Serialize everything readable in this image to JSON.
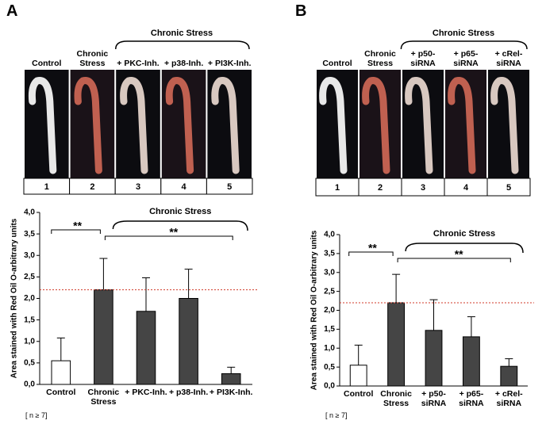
{
  "chart_data": [
    {
      "type": "bar",
      "panel": "A",
      "photo_header": "Chronic Stress",
      "photo_labels": [
        "Control",
        "Chronic Stress",
        "+ PKC-Inh.",
        "+ p38-Inh.",
        "+ PI3K-Inh."
      ],
      "photo_numbers": [
        "1",
        "2",
        "3",
        "4",
        "5"
      ],
      "ylabel": "Area stained with Red Oil O-arbitrary units",
      "categories": [
        "Control",
        "Chronic Stress",
        "+ PKC-Inh.",
        "+ p38-Inh.",
        "+ PI3K-Inh."
      ],
      "values": [
        0.55,
        2.2,
        1.7,
        2.0,
        0.25
      ],
      "errors": [
        0.53,
        0.73,
        0.78,
        0.68,
        0.15
      ],
      "colors": [
        "#ffffff",
        "#454545",
        "#454545",
        "#454545",
        "#454545"
      ],
      "ylim": [
        0,
        4
      ],
      "yticks": [
        {
          "value": 0,
          "label": "0,0"
        },
        {
          "value": 0.5,
          "label": "0,5"
        },
        {
          "value": 1,
          "label": "1,0"
        },
        {
          "value": 1.5,
          "label": "1,5"
        },
        {
          "value": 2,
          "label": "2,0"
        },
        {
          "value": 2.5,
          "label": "2,5"
        },
        {
          "value": 3,
          "label": "3,0"
        },
        {
          "value": 3.5,
          "label": "3,5"
        },
        {
          "value": 4,
          "label": "4,0"
        }
      ],
      "reference_line": {
        "value": 2.2,
        "color": "#d03a2a"
      },
      "bracket_label": "Chronic Stress",
      "significance": [
        "**",
        "**"
      ],
      "note": "[ n ≥ 7]"
    },
    {
      "type": "bar",
      "panel": "B",
      "photo_header": "Chronic Stress",
      "photo_labels": [
        "Control",
        "Chronic Stress",
        "+ p50-siRNA",
        "+ p65-siRNA",
        "+ cRel-siRNA"
      ],
      "photo_numbers": [
        "1",
        "2",
        "3",
        "4",
        "5"
      ],
      "ylabel": "Area stained with Red Oil O-arbitrary units",
      "categories": [
        "Control",
        "Chronic Stress",
        "+ p50-siRNA",
        "+ p65-siRNA",
        "+ cRel-siRNA"
      ],
      "values": [
        0.55,
        2.2,
        1.47,
        1.3,
        0.52
      ],
      "errors": [
        0.53,
        0.75,
        0.81,
        0.53,
        0.2
      ],
      "colors": [
        "#ffffff",
        "#454545",
        "#454545",
        "#454545",
        "#454545"
      ],
      "ylim": [
        0,
        4
      ],
      "yticks": [
        {
          "value": 0,
          "label": "0,0"
        },
        {
          "value": 0.5,
          "label": "0,5"
        },
        {
          "value": 1,
          "label": "1,0"
        },
        {
          "value": 1.5,
          "label": "1,5"
        },
        {
          "value": 2,
          "label": "2,0"
        },
        {
          "value": 2.5,
          "label": "2,5"
        },
        {
          "value": 3,
          "label": "3,0"
        },
        {
          "value": 3.5,
          "label": "3,5"
        },
        {
          "value": 4,
          "label": "4,0"
        }
      ],
      "reference_line": {
        "value": 2.2,
        "color": "#d03a2a"
      },
      "bracket_label": "Chronic Stress",
      "significance": [
        "**",
        "**"
      ],
      "note": "[ n ≥ 7]"
    }
  ]
}
